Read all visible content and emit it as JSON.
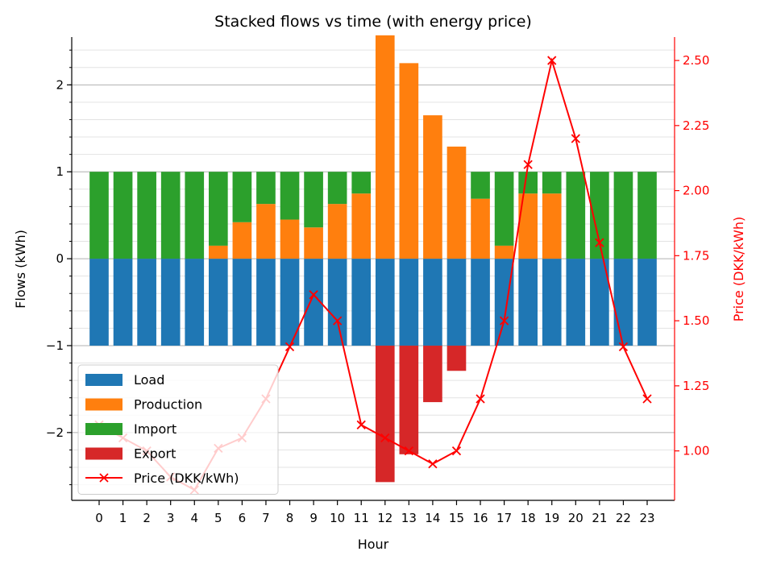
{
  "chart_data": {
    "type": "bar",
    "stacked": true,
    "title": "Stacked flows vs time (with energy price)",
    "xlabel": "Hour",
    "ylabel": "Flows (kWh)",
    "y2label": "Price (DKK/kWh)",
    "categories": [
      "0",
      "1",
      "2",
      "3",
      "4",
      "5",
      "6",
      "7",
      "8",
      "9",
      "10",
      "11",
      "12",
      "13",
      "14",
      "15",
      "16",
      "17",
      "18",
      "19",
      "20",
      "21",
      "22",
      "23"
    ],
    "ylim": [
      -2.78,
      2.55
    ],
    "y2lim": [
      0.81,
      2.59
    ],
    "yticks": [
      -2,
      -1,
      0,
      1,
      2
    ],
    "yticks_labels": [
      "−2",
      "−1",
      "0",
      "1",
      "2"
    ],
    "y2ticks": [
      1.0,
      1.25,
      1.5,
      1.75,
      2.0,
      2.25,
      2.5
    ],
    "y2ticks_labels": [
      "1.00",
      "1.25",
      "1.50",
      "1.75",
      "2.00",
      "2.25",
      "2.50"
    ],
    "grid": true,
    "legend_position": "lower-left",
    "series": [
      {
        "name": "Load",
        "color": "#1f77b4",
        "values": [
          -1,
          -1,
          -1,
          -1,
          -1,
          -1,
          -1,
          -1,
          -1,
          -1,
          -1,
          -1,
          -1,
          -1,
          -1,
          -1,
          -1,
          -1,
          -1,
          -1,
          -1,
          -1,
          -1,
          -1
        ]
      },
      {
        "name": "Production",
        "color": "#ff7f0e",
        "values": [
          0,
          0,
          0,
          0,
          0,
          0.15,
          0.42,
          0.63,
          0.45,
          0.36,
          0.63,
          0.75,
          2.57,
          2.25,
          1.65,
          1.29,
          0.69,
          0.15,
          0.75,
          0.75,
          0,
          0,
          0,
          0
        ]
      },
      {
        "name": "Import",
        "color": "#2ca02c",
        "values": [
          1,
          1,
          1,
          1,
          1,
          0.85,
          0.58,
          0.37,
          0.55,
          0.64,
          0.37,
          0.25,
          0,
          0,
          0,
          0,
          0.31,
          0.85,
          0.25,
          0.25,
          1,
          1,
          1,
          1
        ]
      },
      {
        "name": "Export",
        "color": "#d62728",
        "values": [
          0,
          0,
          0,
          0,
          0,
          0,
          0,
          0,
          0,
          0,
          0,
          0,
          -1.57,
          -1.25,
          -0.65,
          -0.29,
          0,
          0,
          0,
          0,
          0,
          0,
          0,
          0
        ]
      }
    ],
    "line_series": {
      "name": "Price (DKK/kWh)",
      "color": "#ff0000",
      "axis": "right",
      "marker": "x",
      "values": [
        1.1,
        1.05,
        1.0,
        0.9,
        0.85,
        1.01,
        1.05,
        1.2,
        1.4,
        1.6,
        1.5,
        1.1,
        1.05,
        1.0,
        0.95,
        1.0,
        1.2,
        1.5,
        2.1,
        2.5,
        2.2,
        1.8,
        1.4,
        1.2
      ]
    }
  }
}
